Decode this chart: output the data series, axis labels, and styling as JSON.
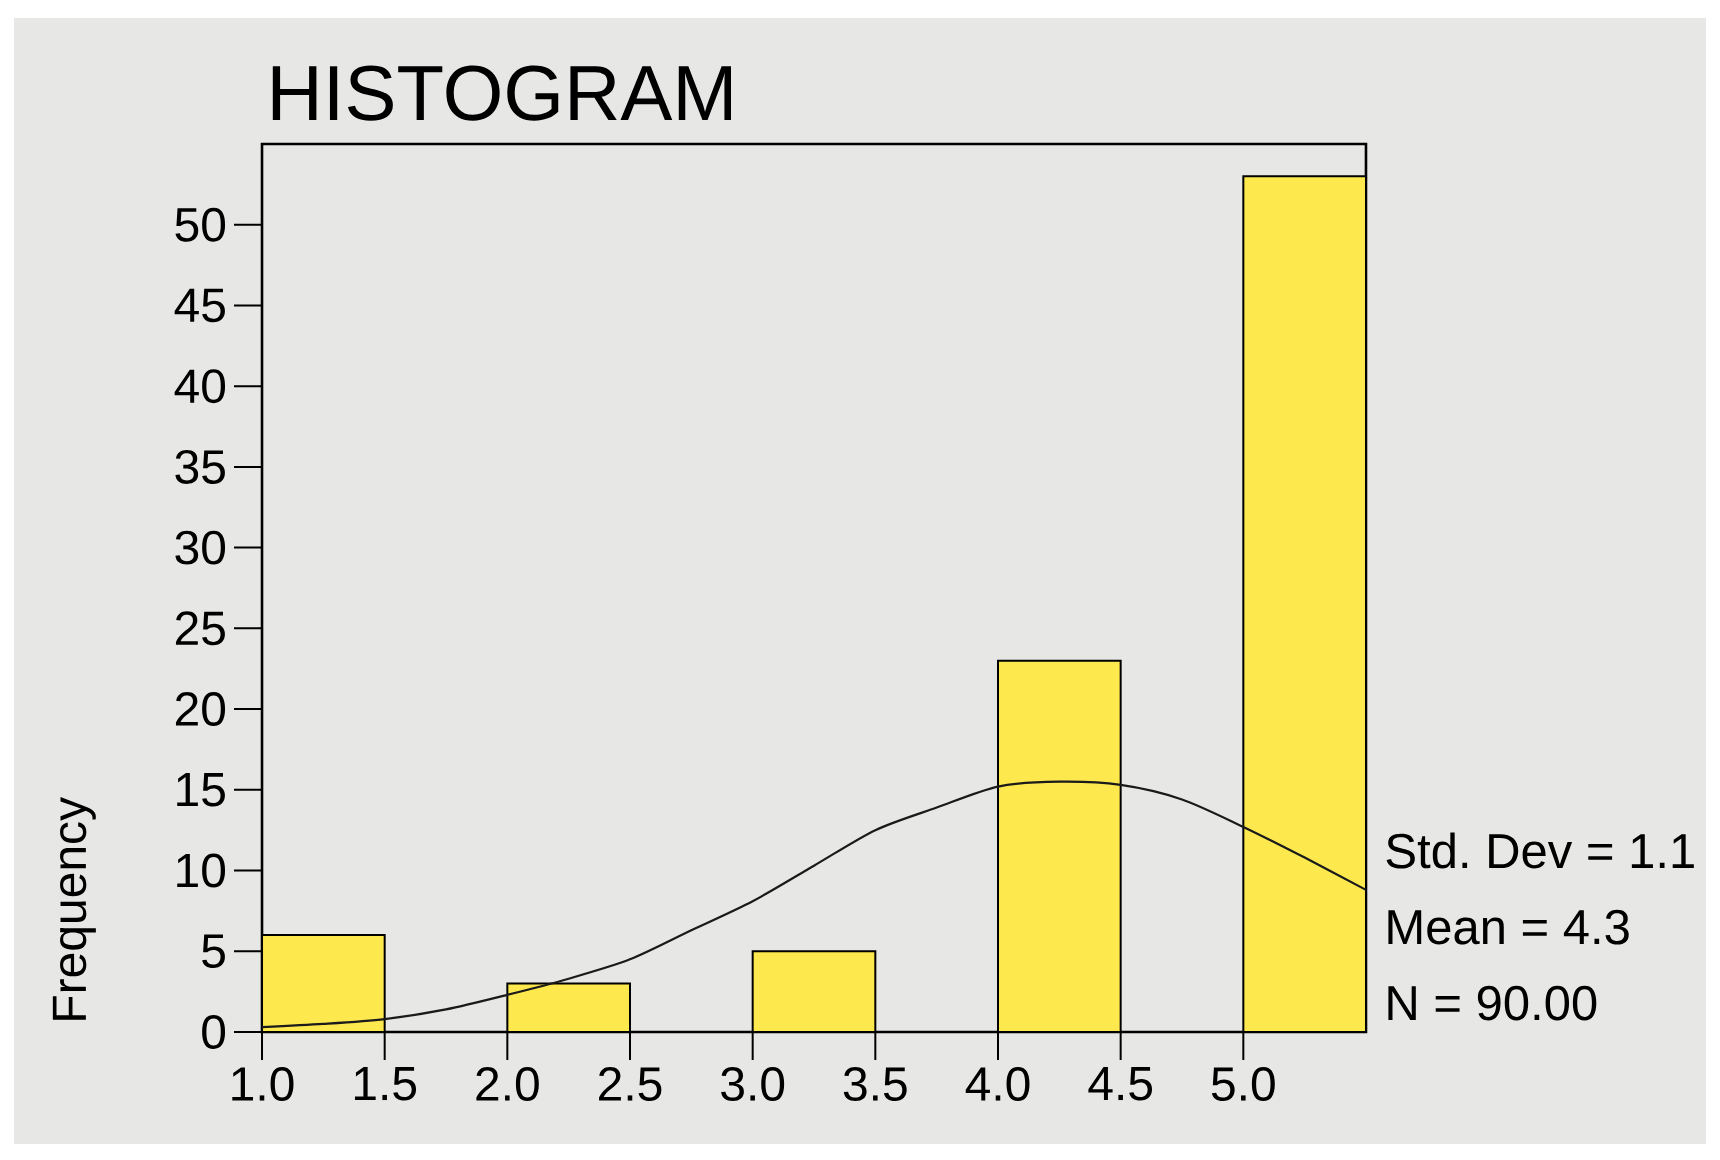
{
  "chart_data": {
    "type": "histogram",
    "title": "HISTOGRAM",
    "ylabel": "Frequency",
    "bins": [
      1.0,
      1.5,
      2.0,
      2.5,
      3.0,
      3.5,
      4.0,
      4.5,
      5.0,
      5.5
    ],
    "series": [
      {
        "color": "#fde84e",
        "values": [
          6,
          0,
          3,
          0,
          5,
          0,
          23,
          0,
          53
        ]
      },
      {
        "type": "line",
        "color": "#1a1a1a",
        "x": [
          1.0,
          1.25,
          1.5,
          1.75,
          2.0,
          2.25,
          2.5,
          2.75,
          3.0,
          3.25,
          3.5,
          3.75,
          4.0,
          4.25,
          4.5,
          4.75,
          5.0,
          5.25,
          5.5
        ],
        "values": [
          0.3,
          0.5,
          0.8,
          1.4,
          2.3,
          3.3,
          4.5,
          6.3,
          8.1,
          10.3,
          12.5,
          13.9,
          15.2,
          15.5,
          15.3,
          14.4,
          12.7,
          10.8,
          8.8
        ]
      }
    ],
    "xlim": [
      1.0,
      5.5
    ],
    "ylim": [
      0,
      55
    ],
    "xticks": [
      {
        "value": 1.0,
        "label": "1.0"
      },
      {
        "value": 1.5,
        "label": "1.5"
      },
      {
        "value": 2.0,
        "label": "2.0"
      },
      {
        "value": 2.5,
        "label": "2.5"
      },
      {
        "value": 3.0,
        "label": "3.0"
      },
      {
        "value": 3.5,
        "label": "3.5"
      },
      {
        "value": 4.0,
        "label": "4.0"
      },
      {
        "value": 4.5,
        "label": "4.5"
      },
      {
        "value": 5.0,
        "label": "5.0"
      }
    ],
    "yticks": [
      0,
      5,
      10,
      15,
      20,
      25,
      30,
      35,
      40,
      45,
      50
    ],
    "annotations": [
      "Std. Dev = 1.1",
      "Mean = 4.3",
      "N = 90.00"
    ]
  }
}
